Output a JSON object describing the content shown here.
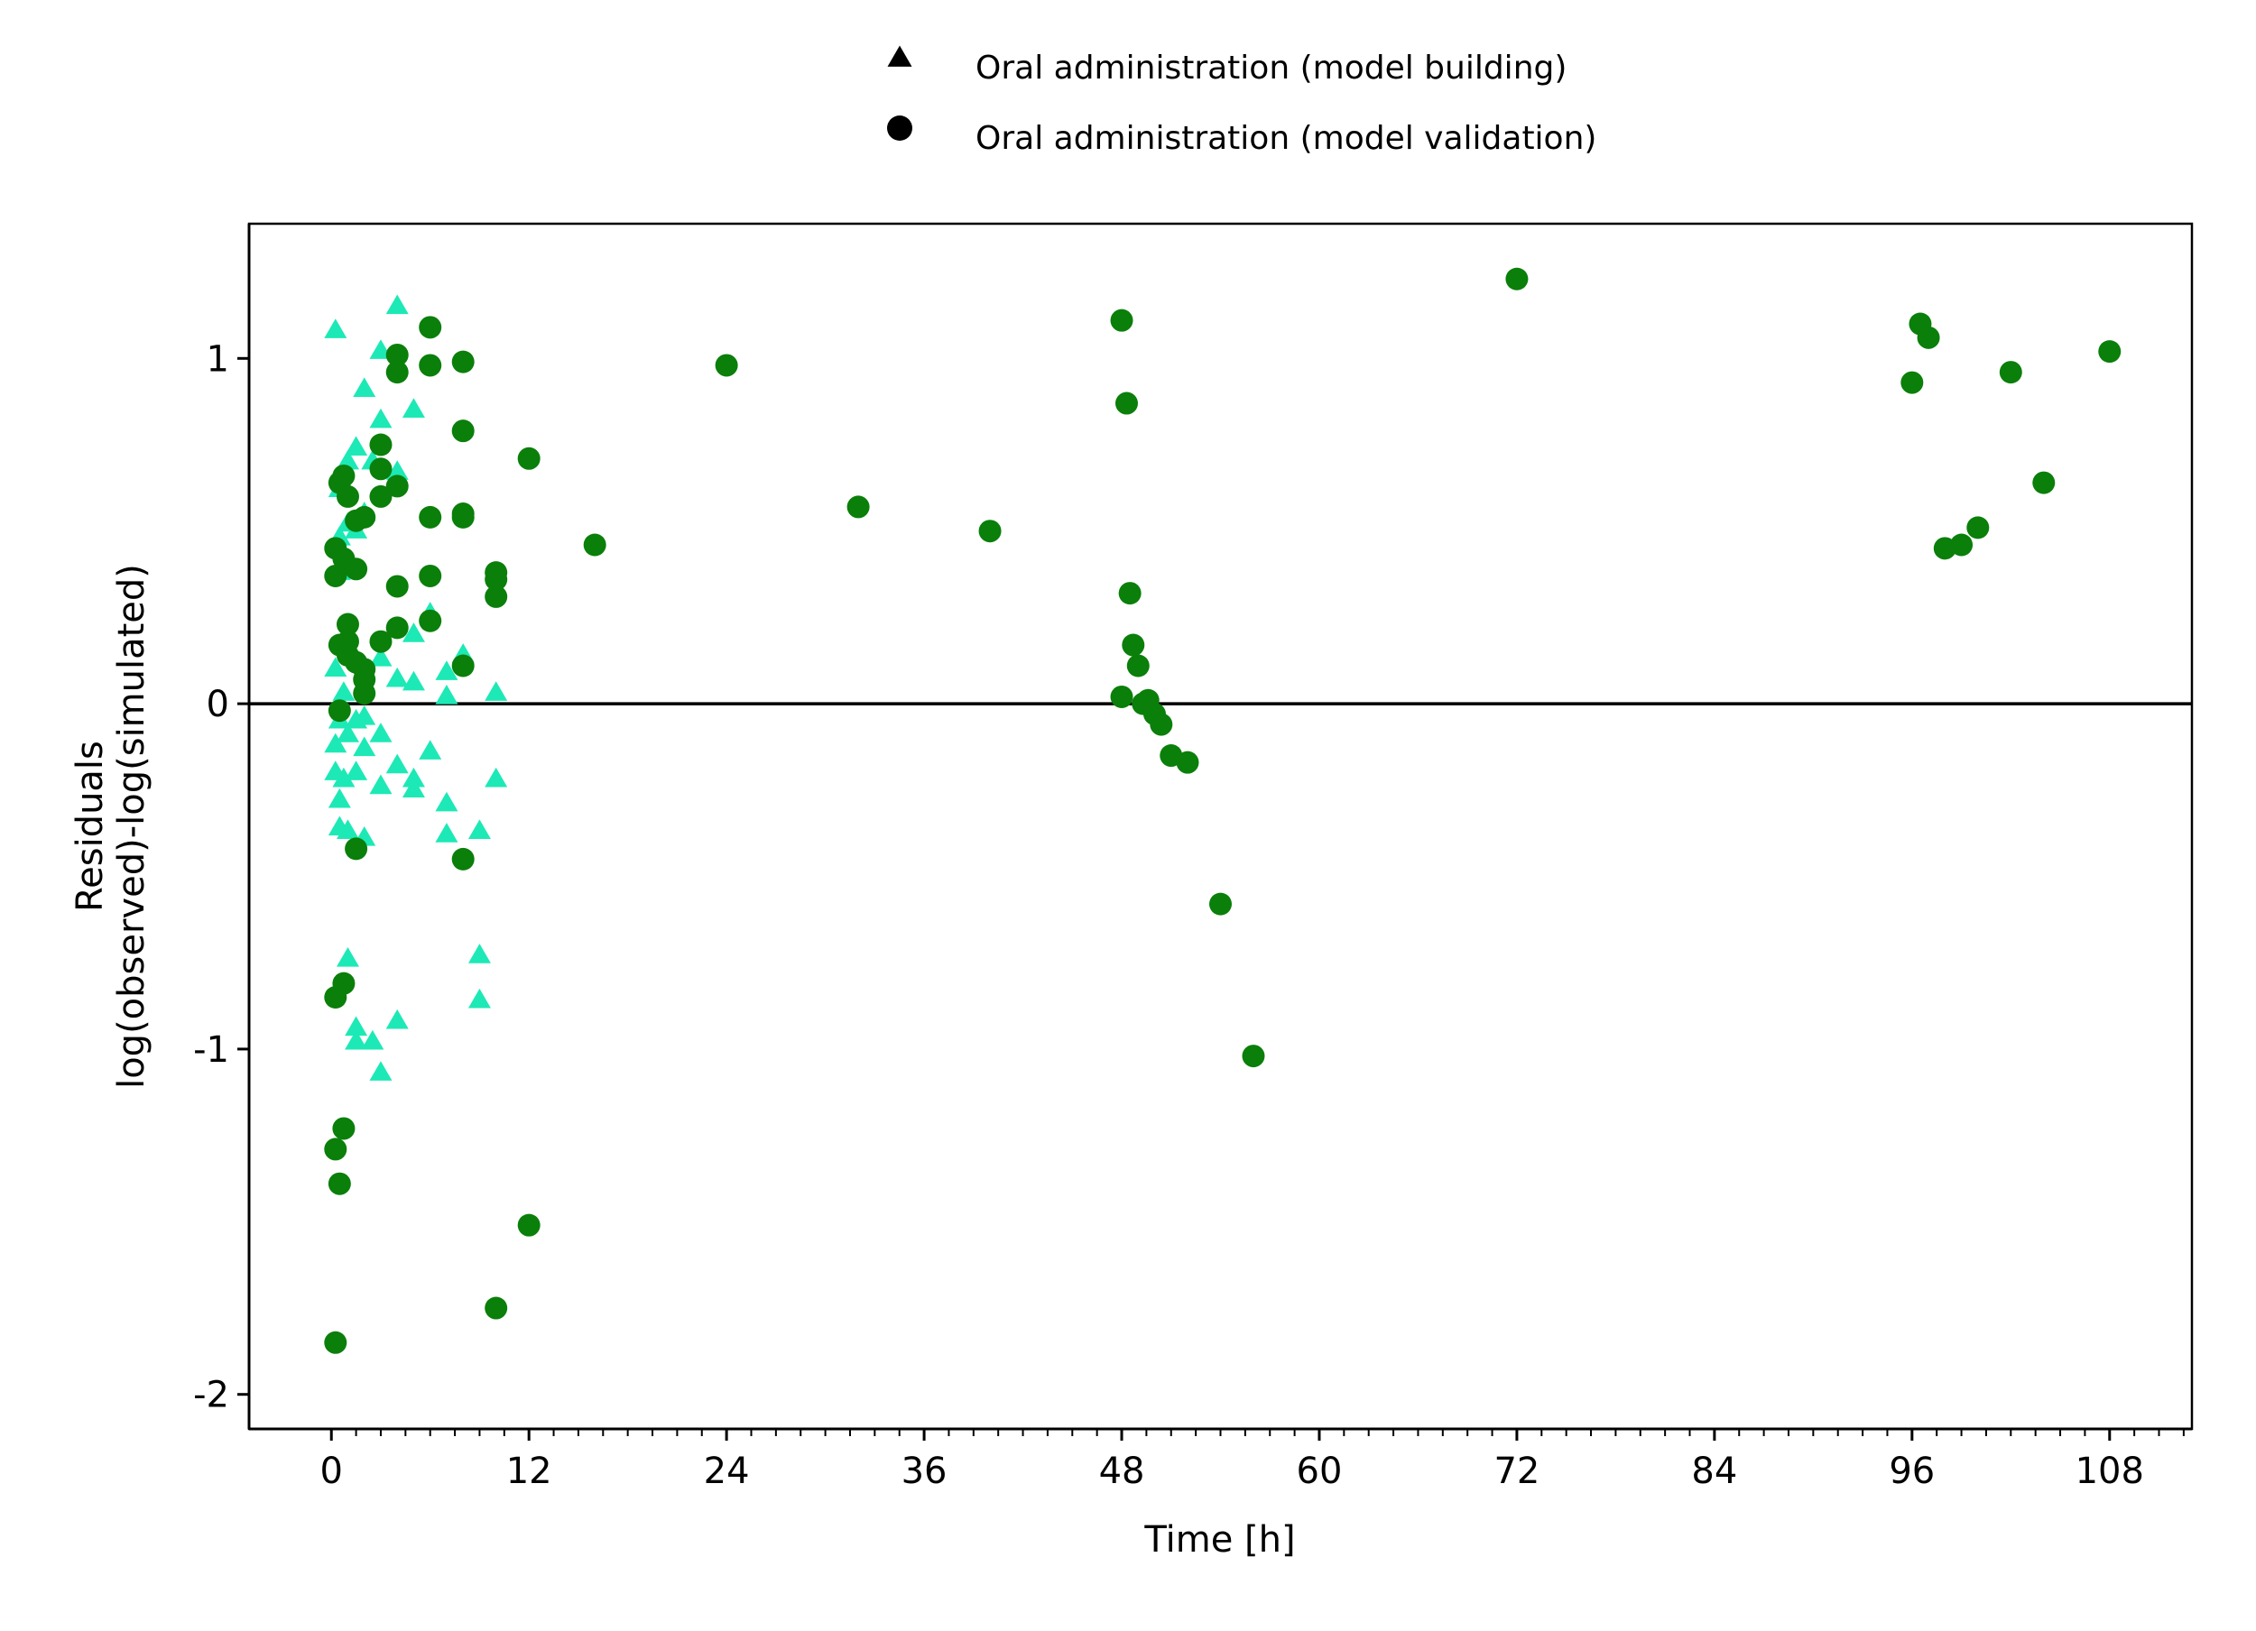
{
  "chart_data": {
    "type": "scatter",
    "xlabel": "Time [h]",
    "ylabel_lines": [
      "Residuals",
      "log(observed)-log(simulated)"
    ],
    "xlim": [
      -5,
      113
    ],
    "ylim": [
      -2.1,
      1.39
    ],
    "xticks": [
      0,
      12,
      24,
      36,
      48,
      60,
      72,
      84,
      96,
      108
    ],
    "xminor_step": 1.5,
    "yticks": [
      -2,
      -1,
      0,
      1
    ],
    "reference_line_y": 0,
    "grid": false,
    "legend_position": "top",
    "legend": [
      {
        "label": "Oral administration (model building)",
        "marker": "triangle"
      },
      {
        "label": "Oral administration (model validation)",
        "marker": "circle"
      }
    ],
    "series": [
      {
        "name": "Oral administration (model building)",
        "marker": "triangle",
        "color": "#1DE9B6",
        "legend_color": "#000000",
        "points": [
          [
            0.25,
            1.08
          ],
          [
            0.5,
            0.62
          ],
          [
            0.5,
            0.48
          ],
          [
            0.5,
            0.38
          ],
          [
            0.25,
            0.1
          ],
          [
            0.25,
            -0.12
          ],
          [
            0.25,
            -0.2
          ],
          [
            0.5,
            -0.28
          ],
          [
            0.5,
            -0.36
          ],
          [
            0.5,
            -0.05
          ],
          [
            0.75,
            0.03
          ],
          [
            0.75,
            -0.22
          ],
          [
            1,
            0.7
          ],
          [
            1,
            0.52
          ],
          [
            1,
            -0.09
          ],
          [
            1,
            -0.37
          ],
          [
            1,
            -0.74
          ],
          [
            1.5,
            0.74
          ],
          [
            1.5,
            0.5
          ],
          [
            1.5,
            -0.05
          ],
          [
            1.5,
            -0.2
          ],
          [
            1.5,
            -0.94
          ],
          [
            1.5,
            -0.98
          ],
          [
            2,
            0.91
          ],
          [
            2,
            0.55
          ],
          [
            2,
            -0.04
          ],
          [
            2,
            -0.13
          ],
          [
            2,
            -0.39
          ],
          [
            2.5,
            -0.98
          ],
          [
            2.5,
            0.7
          ],
          [
            3,
            1.02
          ],
          [
            3,
            0.82
          ],
          [
            3,
            0.13
          ],
          [
            3,
            -0.09
          ],
          [
            3,
            -0.24
          ],
          [
            3,
            -1.07
          ],
          [
            4,
            1.15
          ],
          [
            4,
            0.67
          ],
          [
            4,
            0.07
          ],
          [
            4,
            -0.18
          ],
          [
            4,
            -0.92
          ],
          [
            5,
            0.85
          ],
          [
            5,
            0.2
          ],
          [
            5,
            0.06
          ],
          [
            5,
            -0.22
          ],
          [
            5,
            -0.25
          ],
          [
            6,
            0.26
          ],
          [
            6,
            -0.14
          ],
          [
            7,
            0.09
          ],
          [
            7,
            0.02
          ],
          [
            7,
            -0.29
          ],
          [
            7,
            -0.38
          ],
          [
            8,
            0.14
          ],
          [
            9,
            -0.37
          ],
          [
            9,
            -0.73
          ],
          [
            9,
            -0.86
          ],
          [
            10,
            0.03
          ],
          [
            10,
            -0.22
          ]
        ]
      },
      {
        "name": "Oral administration (model validation)",
        "marker": "circle",
        "color": "#0A7F0A",
        "legend_color": "#000000",
        "points": [
          [
            0.25,
            0.45
          ],
          [
            0.25,
            0.37
          ],
          [
            0.25,
            -0.85
          ],
          [
            0.25,
            -1.29
          ],
          [
            0.25,
            -1.85
          ],
          [
            0.5,
            0.64
          ],
          [
            0.5,
            0.17
          ],
          [
            0.5,
            -0.02
          ],
          [
            0.5,
            -1.39
          ],
          [
            0.75,
            0.66
          ],
          [
            0.75,
            0.42
          ],
          [
            0.75,
            -0.81
          ],
          [
            0.75,
            -1.23
          ],
          [
            1,
            0.6
          ],
          [
            1,
            0.23
          ],
          [
            1,
            0.14
          ],
          [
            1,
            0.18
          ],
          [
            1.5,
            0.53
          ],
          [
            1.5,
            0.39
          ],
          [
            1.5,
            0.12
          ],
          [
            1.5,
            -0.42
          ],
          [
            2,
            0.54
          ],
          [
            2,
            0.1
          ],
          [
            2,
            0.07
          ],
          [
            2,
            0.03
          ],
          [
            3,
            0.75
          ],
          [
            3,
            0.68
          ],
          [
            3,
            0.6
          ],
          [
            3,
            0.18
          ],
          [
            4,
            1.01
          ],
          [
            4,
            0.96
          ],
          [
            4,
            0.63
          ],
          [
            4,
            0.34
          ],
          [
            4,
            0.22
          ],
          [
            6,
            1.09
          ],
          [
            6,
            0.98
          ],
          [
            6,
            0.54
          ],
          [
            6,
            0.37
          ],
          [
            6,
            0.24
          ],
          [
            8,
            0.99
          ],
          [
            8,
            0.79
          ],
          [
            8,
            0.55
          ],
          [
            8,
            0.54
          ],
          [
            8,
            0.11
          ],
          [
            8,
            -0.45
          ],
          [
            10,
            0.38
          ],
          [
            10,
            0.36
          ],
          [
            10,
            0.31
          ],
          [
            10,
            -1.75
          ],
          [
            12,
            0.71
          ],
          [
            12,
            -1.51
          ],
          [
            16,
            0.46
          ],
          [
            24,
            0.98
          ],
          [
            32,
            0.57
          ],
          [
            40,
            0.5
          ],
          [
            48,
            1.11
          ],
          [
            48,
            0.02
          ],
          [
            48.3,
            0.87
          ],
          [
            48.5,
            0.32
          ],
          [
            48.7,
            0.17
          ],
          [
            49,
            0.11
          ],
          [
            49.3,
            0.0
          ],
          [
            49.6,
            0.01
          ],
          [
            50,
            -0.03
          ],
          [
            50.4,
            -0.06
          ],
          [
            51,
            -0.15
          ],
          [
            52,
            -0.17
          ],
          [
            54,
            -0.58
          ],
          [
            56,
            -1.02
          ],
          [
            72,
            1.23
          ],
          [
            96,
            0.93
          ],
          [
            96.5,
            1.1
          ],
          [
            97,
            1.06
          ],
          [
            98,
            0.45
          ],
          [
            99,
            0.46
          ],
          [
            100,
            0.51
          ],
          [
            102,
            0.96
          ],
          [
            104,
            0.64
          ],
          [
            108,
            1.02
          ]
        ]
      }
    ]
  }
}
